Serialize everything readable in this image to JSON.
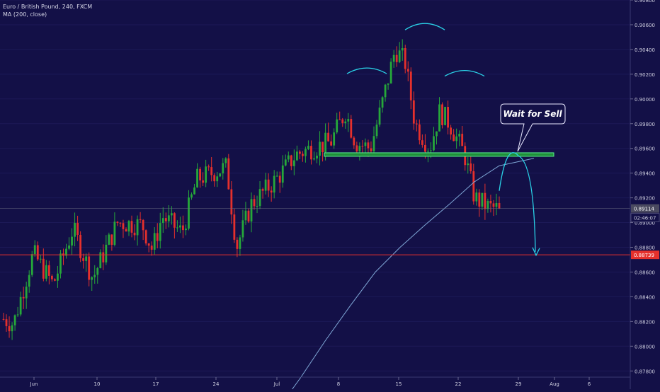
{
  "legend": {
    "title": "Euro / British Pound, 240, FXCM",
    "indicator": "MA (200, close)"
  },
  "colors": {
    "background": "#131047",
    "up": "#26a83a",
    "down": "#e5302c",
    "ma": "#7fa7d6",
    "pattern_arc": "#2ad3e8",
    "neckline_fill": "#1f8f3a",
    "neckline_stroke": "#58f08a",
    "support": "#e5302c",
    "axis_text": "#cfcfe0",
    "price_label": "#4a4a60",
    "support_label": "#e5302c"
  },
  "chart_data": {
    "type": "candlestick",
    "symbol": "Euro / British Pound, 240, FXCM",
    "y_axis_ticks": [
      "0.90800",
      "0.90600",
      "0.90400",
      "0.90200",
      "0.90000",
      "0.89800",
      "0.89600",
      "0.89400",
      "0.89200",
      "0.89000",
      "0.88800",
      "0.88600",
      "0.88400",
      "0.88200",
      "0.88000",
      "0.87800"
    ],
    "x_axis_ticks": [
      "Jun",
      "10",
      "17",
      "24",
      "Jul",
      "8",
      "15",
      "22",
      "29",
      "Aug",
      "6"
    ],
    "ylim": [
      0.8775,
      0.908
    ],
    "current_price": "0.89114",
    "countdown": "02:46:07",
    "support_price": "0.88739",
    "neckline_price": 0.8955,
    "annotation": "Wait for Sell",
    "pattern": "head-and-shoulders",
    "anchors": [
      {
        "t": 0,
        "p": 0.8822
      },
      {
        "t": 0.02,
        "p": 0.8818
      },
      {
        "t": 0.06,
        "p": 0.8875
      },
      {
        "t": 0.1,
        "p": 0.885
      },
      {
        "t": 0.14,
        "p": 0.8895
      },
      {
        "t": 0.18,
        "p": 0.8855
      },
      {
        "t": 0.23,
        "p": 0.89
      },
      {
        "t": 0.28,
        "p": 0.8898
      },
      {
        "t": 0.3,
        "p": 0.8878
      },
      {
        "t": 0.32,
        "p": 0.8905
      },
      {
        "t": 0.36,
        "p": 0.8892
      },
      {
        "t": 0.39,
        "p": 0.8935
      },
      {
        "t": 0.42,
        "p": 0.894
      },
      {
        "t": 0.45,
        "p": 0.8945
      },
      {
        "t": 0.47,
        "p": 0.888
      },
      {
        "t": 0.5,
        "p": 0.8915
      },
      {
        "t": 0.55,
        "p": 0.8935
      },
      {
        "t": 0.59,
        "p": 0.8955
      },
      {
        "t": 0.62,
        "p": 0.896
      },
      {
        "t": 0.66,
        "p": 0.8965
      },
      {
        "t": 0.69,
        "p": 0.899
      },
      {
        "t": 0.71,
        "p": 0.8965
      },
      {
        "t": 0.74,
        "p": 0.896
      },
      {
        "t": 0.76,
        "p": 0.899
      },
      {
        "t": 0.79,
        "p": 0.904
      },
      {
        "t": 0.81,
        "p": 0.903
      },
      {
        "t": 0.83,
        "p": 0.898
      },
      {
        "t": 0.86,
        "p": 0.896
      },
      {
        "t": 0.88,
        "p": 0.899
      },
      {
        "t": 0.9,
        "p": 0.898
      },
      {
        "t": 0.93,
        "p": 0.8955
      },
      {
        "t": 0.95,
        "p": 0.892
      },
      {
        "t": 0.98,
        "p": 0.8912
      },
      {
        "t": 1.0,
        "p": 0.8911
      }
    ],
    "moving_average": [
      {
        "t": 0.555,
        "p": 0.875
      },
      {
        "t": 0.6,
        "p": 0.8775
      },
      {
        "t": 0.65,
        "p": 0.8805
      },
      {
        "t": 0.7,
        "p": 0.8833
      },
      {
        "t": 0.75,
        "p": 0.886
      },
      {
        "t": 0.8,
        "p": 0.888
      },
      {
        "t": 0.85,
        "p": 0.8898
      },
      {
        "t": 0.9,
        "p": 0.8915
      },
      {
        "t": 0.95,
        "p": 0.8933
      },
      {
        "t": 1.0,
        "p": 0.8946
      },
      {
        "t": 1.07,
        "p": 0.8952
      }
    ],
    "projection": [
      {
        "x": "now",
        "p": 0.894
      },
      {
        "x": "29",
        "p": 0.8954
      },
      {
        "x": "Aug-",
        "p": 0.8873
      }
    ]
  }
}
